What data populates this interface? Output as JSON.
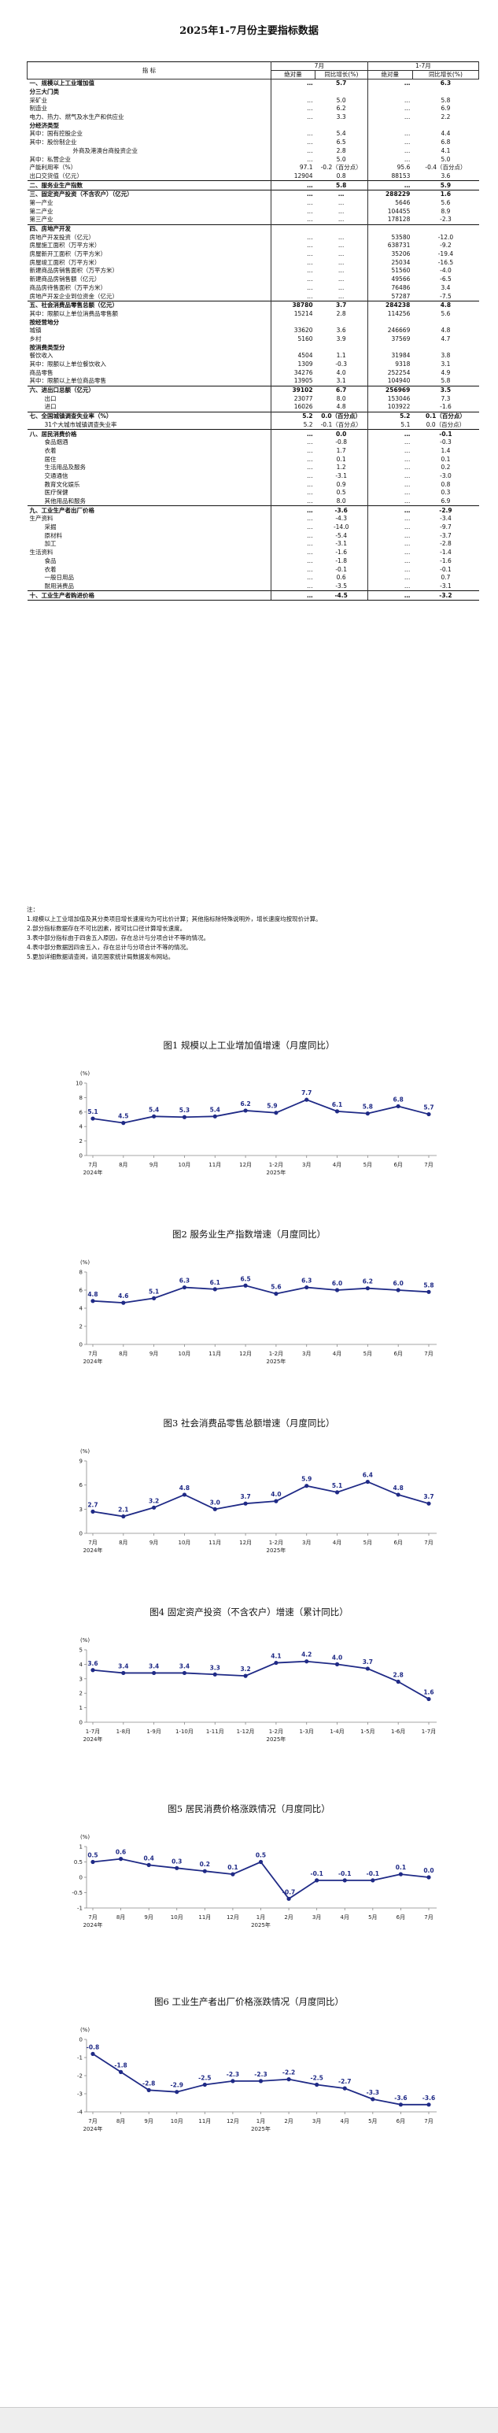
{
  "document": {
    "title": "2025年1-7月份主要指标数据",
    "header": {
      "indicator": "指  标",
      "period1": "7月",
      "period2": "1-7月",
      "abs": "绝对量",
      "growth": "同比增长(%)"
    },
    "rows": [
      {
        "label": "一、规模以上工业增加值",
        "a1": "…",
        "g1": "5.7",
        "a2": "…",
        "g2": "6.3",
        "level": 0,
        "bold": true,
        "sep": true
      },
      {
        "label": "分三大门类",
        "a1": "",
        "g1": "",
        "a2": "",
        "g2": "",
        "level": 0,
        "bold": true
      },
      {
        "label": "采矿业",
        "a1": "…",
        "g1": "5.0",
        "a2": "…",
        "g2": "5.8",
        "level": 0
      },
      {
        "label": "制造业",
        "a1": "…",
        "g1": "6.2",
        "a2": "…",
        "g2": "6.9",
        "level": 0
      },
      {
        "label": "电力、热力、燃气及水生产和供应业",
        "a1": "…",
        "g1": "3.3",
        "a2": "…",
        "g2": "2.2",
        "level": 0
      },
      {
        "label": "分经济类型",
        "a1": "",
        "g1": "",
        "a2": "",
        "g2": "",
        "level": 0,
        "bold": true
      },
      {
        "label": "其中：国有控股企业",
        "a1": "…",
        "g1": "5.4",
        "a2": "…",
        "g2": "4.4",
        "level": 0
      },
      {
        "label": "其中：股份制企业",
        "a1": "…",
        "g1": "6.5",
        "a2": "…",
        "g2": "6.8",
        "level": 0
      },
      {
        "label": "外商及港澳台商投资企业",
        "a1": "…",
        "g1": "2.8",
        "a2": "…",
        "g2": "4.1",
        "level": 2
      },
      {
        "label": "其中：私营企业",
        "a1": "…",
        "g1": "5.0",
        "a2": "…",
        "g2": "5.0",
        "level": 0
      },
      {
        "label": "产能利用率（%）",
        "a1": "97.1",
        "g1": "-0.2（百分点）",
        "a2": "95.6",
        "g2": "-0.4（百分点）",
        "level": 0
      },
      {
        "label": "出口交货值（亿元）",
        "a1": "12904",
        "g1": "0.8",
        "a2": "88153",
        "g2": "3.6",
        "level": 0
      },
      {
        "label": "二、服务业生产指数",
        "a1": "…",
        "g1": "5.8",
        "a2": "…",
        "g2": "5.9",
        "level": 0,
        "bold": true,
        "sep": true
      },
      {
        "label": "三、固定资产投资（不含农户）（亿元）",
        "a1": "…",
        "g1": "…",
        "a2": "288229",
        "g2": "1.6",
        "level": 0,
        "bold": true,
        "sep": true
      },
      {
        "label": "第一产业",
        "a1": "…",
        "g1": "…",
        "a2": "5646",
        "g2": "5.6",
        "level": 0
      },
      {
        "label": "第二产业",
        "a1": "…",
        "g1": "…",
        "a2": "104455",
        "g2": "8.9",
        "level": 0
      },
      {
        "label": "第三产业",
        "a1": "…",
        "g1": "…",
        "a2": "178128",
        "g2": "-2.3",
        "level": 0
      },
      {
        "label": "四、房地产开发",
        "a1": "",
        "g1": "",
        "a2": "",
        "g2": "",
        "level": 0,
        "bold": true,
        "sep": true
      },
      {
        "label": "房地产开发投资（亿元）",
        "a1": "…",
        "g1": "…",
        "a2": "53580",
        "g2": "-12.0",
        "level": 0
      },
      {
        "label": "房屋施工面积（万平方米）",
        "a1": "…",
        "g1": "…",
        "a2": "638731",
        "g2": "-9.2",
        "level": 0
      },
      {
        "label": "房屋新开工面积（万平方米）",
        "a1": "…",
        "g1": "…",
        "a2": "35206",
        "g2": "-19.4",
        "level": 0
      },
      {
        "label": "房屋竣工面积（万平方米）",
        "a1": "…",
        "g1": "…",
        "a2": "25034",
        "g2": "-16.5",
        "level": 0
      },
      {
        "label": "新建商品房销售面积（万平方米）",
        "a1": "…",
        "g1": "…",
        "a2": "51560",
        "g2": "-4.0",
        "level": 0
      },
      {
        "label": "新建商品房销售额（亿元）",
        "a1": "…",
        "g1": "…",
        "a2": "49566",
        "g2": "-6.5",
        "level": 0
      },
      {
        "label": "商品房待售面积（万平方米）",
        "a1": "…",
        "g1": "…",
        "a2": "76486",
        "g2": "3.4",
        "level": 0
      },
      {
        "label": "房地产开发企业到位资金（亿元）",
        "a1": "…",
        "g1": "…",
        "a2": "57287",
        "g2": "-7.5",
        "level": 0
      },
      {
        "label": "五、社会消费品零售总额（亿元）",
        "a1": "38780",
        "g1": "3.7",
        "a2": "284238",
        "g2": "4.8",
        "level": 0,
        "bold": true,
        "sep": true
      },
      {
        "label": "其中：限额以上单位消费品零售额",
        "a1": "15214",
        "g1": "2.8",
        "a2": "114256",
        "g2": "5.6",
        "level": 0
      },
      {
        "label": "按经营地分",
        "a1": "",
        "g1": "",
        "a2": "",
        "g2": "",
        "level": 0,
        "bold": true
      },
      {
        "label": "城镇",
        "a1": "33620",
        "g1": "3.6",
        "a2": "246669",
        "g2": "4.8",
        "level": 0
      },
      {
        "label": "乡村",
        "a1": "5160",
        "g1": "3.9",
        "a2": "37569",
        "g2": "4.7",
        "level": 0
      },
      {
        "label": "按消费类型分",
        "a1": "",
        "g1": "",
        "a2": "",
        "g2": "",
        "level": 0,
        "bold": true
      },
      {
        "label": "餐饮收入",
        "a1": "4504",
        "g1": "1.1",
        "a2": "31984",
        "g2": "3.8",
        "level": 0
      },
      {
        "label": "其中：限额以上单位餐饮收入",
        "a1": "1309",
        "g1": "-0.3",
        "a2": "9318",
        "g2": "3.1",
        "level": 0
      },
      {
        "label": "商品零售",
        "a1": "34276",
        "g1": "4.0",
        "a2": "252254",
        "g2": "4.9",
        "level": 0
      },
      {
        "label": "其中：限额以上单位商品零售",
        "a1": "13905",
        "g1": "3.1",
        "a2": "104940",
        "g2": "5.8",
        "level": 0
      },
      {
        "label": "六、进出口总额（亿元）",
        "a1": "39102",
        "g1": "6.7",
        "a2": "256969",
        "g2": "3.5",
        "level": 0,
        "bold": true,
        "sep": true
      },
      {
        "label": "出口",
        "a1": "23077",
        "g1": "8.0",
        "a2": "153046",
        "g2": "7.3",
        "level": 1
      },
      {
        "label": "进口",
        "a1": "16026",
        "g1": "4.8",
        "a2": "103922",
        "g2": "-1.6",
        "level": 1
      },
      {
        "label": "七、全国城镇调查失业率（%）",
        "a1": "5.2",
        "g1": "0.0（百分点）",
        "a2": "5.2",
        "g2": "0.1（百分点）",
        "level": 0,
        "bold": true,
        "sep": true
      },
      {
        "label": "31个大城市城镇调查失业率",
        "a1": "5.2",
        "g1": "-0.1（百分点）",
        "a2": "5.1",
        "g2": "0.0（百分点）",
        "level": 1
      },
      {
        "label": "八、居民消费价格",
        "a1": "…",
        "g1": "0.0",
        "a2": "…",
        "g2": "-0.1",
        "level": 0,
        "bold": true,
        "sep": true
      },
      {
        "label": "食品烟酒",
        "a1": "…",
        "g1": "-0.8",
        "a2": "…",
        "g2": "-0.3",
        "level": 1
      },
      {
        "label": "衣着",
        "a1": "…",
        "g1": "1.7",
        "a2": "…",
        "g2": "1.4",
        "level": 1
      },
      {
        "label": "居住",
        "a1": "…",
        "g1": "0.1",
        "a2": "…",
        "g2": "0.1",
        "level": 1
      },
      {
        "label": "生活用品及服务",
        "a1": "…",
        "g1": "1.2",
        "a2": "…",
        "g2": "0.2",
        "level": 1
      },
      {
        "label": "交通通信",
        "a1": "…",
        "g1": "-3.1",
        "a2": "…",
        "g2": "-3.0",
        "level": 1
      },
      {
        "label": "教育文化娱乐",
        "a1": "…",
        "g1": "0.9",
        "a2": "…",
        "g2": "0.8",
        "level": 1
      },
      {
        "label": "医疗保健",
        "a1": "…",
        "g1": "0.5",
        "a2": "…",
        "g2": "0.3",
        "level": 1
      },
      {
        "label": "其他用品和服务",
        "a1": "…",
        "g1": "8.0",
        "a2": "…",
        "g2": "6.9",
        "level": 1
      },
      {
        "label": "九、工业生产者出厂价格",
        "a1": "…",
        "g1": "-3.6",
        "a2": "…",
        "g2": "-2.9",
        "level": 0,
        "bold": true,
        "sep": true
      },
      {
        "label": "生产资料",
        "a1": "…",
        "g1": "-4.3",
        "a2": "…",
        "g2": "-3.4",
        "level": 0
      },
      {
        "label": "采掘",
        "a1": "…",
        "g1": "-14.0",
        "a2": "…",
        "g2": "-9.7",
        "level": 1
      },
      {
        "label": "原材料",
        "a1": "…",
        "g1": "-5.4",
        "a2": "…",
        "g2": "-3.7",
        "level": 1
      },
      {
        "label": "加工",
        "a1": "…",
        "g1": "-3.1",
        "a2": "…",
        "g2": "-2.8",
        "level": 1
      },
      {
        "label": "生活资料",
        "a1": "…",
        "g1": "-1.6",
        "a2": "…",
        "g2": "-1.4",
        "level": 0
      },
      {
        "label": "食品",
        "a1": "…",
        "g1": "-1.8",
        "a2": "…",
        "g2": "-1.6",
        "level": 1
      },
      {
        "label": "衣着",
        "a1": "…",
        "g1": "-0.1",
        "a2": "…",
        "g2": "-0.1",
        "level": 1
      },
      {
        "label": "一般日用品",
        "a1": "…",
        "g1": "0.6",
        "a2": "…",
        "g2": "0.7",
        "level": 1
      },
      {
        "label": "耐用消费品",
        "a1": "…",
        "g1": "-3.5",
        "a2": "…",
        "g2": "-3.1",
        "level": 1
      },
      {
        "label": "十、工业生产者购进价格",
        "a1": "…",
        "g1": "-4.5",
        "a2": "…",
        "g2": "-3.2",
        "level": 0,
        "bold": true,
        "sep": true
      }
    ],
    "notes": [
      "注：",
      "1.规模以上工业增加值及其分类项目增长速度均为可比价计算；其他指标除特殊说明外，增长速度均按现价计算。",
      "2.部分指标数据存在不可比因素，按可比口径计算增长速度。",
      "3.表中部分指标由于四舍五入原因，存在总计与分项合计不等的情况。",
      "4.表中部分数据因四舍五入，存在总计与分项合计不等的情况。",
      "5.更加详细数据请查阅，请见国家统计局数据发布网站。"
    ]
  },
  "chart_data": [
    {
      "type": "line",
      "title": "图1  规模以上工业增加值增速（月度同比）",
      "unit": "(%)",
      "categories": [
        "7月",
        "8月",
        "9月",
        "10月",
        "11月",
        "12月",
        "1-2月",
        "3月",
        "4月",
        "5月",
        "6月",
        "7月"
      ],
      "year_labels": [
        {
          "index": 0,
          "text": "2024年"
        },
        {
          "index": 6,
          "text": "2025年"
        }
      ],
      "values": [
        5.1,
        4.5,
        5.4,
        5.3,
        5.4,
        6.2,
        5.9,
        7.7,
        6.1,
        5.8,
        6.8,
        5.7
      ],
      "y_ticks": [
        0,
        2,
        4,
        6,
        8,
        10
      ],
      "ylim": [
        0,
        10
      ],
      "label_dx": [
        0,
        0,
        0,
        0,
        0,
        0,
        -5,
        0,
        0,
        0,
        0,
        0
      ]
    },
    {
      "type": "line",
      "title": "图2  服务业生产指数增速（月度同比）",
      "unit": "(%)",
      "categories": [
        "7月",
        "8月",
        "9月",
        "10月",
        "11月",
        "12月",
        "1-2月",
        "3月",
        "4月",
        "5月",
        "6月",
        "7月"
      ],
      "year_labels": [
        {
          "index": 0,
          "text": "2024年"
        },
        {
          "index": 6,
          "text": "2025年"
        }
      ],
      "values": [
        4.8,
        4.6,
        5.1,
        6.3,
        6.1,
        6.5,
        5.6,
        6.3,
        6.0,
        6.2,
        6.0,
        5.8
      ],
      "y_ticks": [
        0,
        2,
        4,
        6,
        8
      ],
      "ylim": [
        0,
        8
      ],
      "label_dx": [
        0,
        0,
        0,
        0,
        0,
        0,
        0,
        0,
        0,
        0,
        0,
        0
      ]
    },
    {
      "type": "line",
      "title": "图3  社会消费品零售总额增速（月度同比）",
      "unit": "(%)",
      "categories": [
        "7月",
        "8月",
        "9月",
        "10月",
        "11月",
        "12月",
        "1-2月",
        "3月",
        "4月",
        "5月",
        "6月",
        "7月"
      ],
      "year_labels": [
        {
          "index": 0,
          "text": "2024年"
        },
        {
          "index": 6,
          "text": "2025年"
        }
      ],
      "values": [
        2.7,
        2.1,
        3.2,
        4.8,
        3.0,
        3.7,
        4.0,
        5.9,
        5.1,
        6.4,
        4.8,
        3.7
      ],
      "y_ticks": [
        0,
        3,
        6,
        9
      ],
      "ylim": [
        0,
        9
      ],
      "label_dx": [
        0,
        0,
        0,
        0,
        0,
        0,
        0,
        0,
        0,
        0,
        0,
        0
      ]
    },
    {
      "type": "line",
      "title": "图4  固定资产投资（不含农户）增速（累计同比）",
      "unit": "(%)",
      "categories": [
        "1-7月",
        "1-8月",
        "1-9月",
        "1-10月",
        "1-11月",
        "1-12月",
        "1-2月",
        "1-3月",
        "1-4月",
        "1-5月",
        "1-6月",
        "1-7月"
      ],
      "year_labels": [
        {
          "index": 0,
          "text": "2024年"
        },
        {
          "index": 6,
          "text": "2025年"
        }
      ],
      "values": [
        3.6,
        3.4,
        3.4,
        3.4,
        3.3,
        3.2,
        4.1,
        4.2,
        4.0,
        3.7,
        2.8,
        1.6
      ],
      "y_ticks": [
        0,
        1,
        2,
        3,
        4,
        5
      ],
      "ylim": [
        0,
        5
      ],
      "label_dx": [
        0,
        0,
        0,
        0,
        0,
        0,
        0,
        0,
        0,
        0,
        0,
        0
      ]
    },
    {
      "type": "line",
      "title": "图5  居民消费价格涨跌情况（月度同比）",
      "unit": "(%)",
      "categories": [
        "7月",
        "8月",
        "9月",
        "10月",
        "11月",
        "12月",
        "1月",
        "2月",
        "3月",
        "4月",
        "5月",
        "6月",
        "7月"
      ],
      "year_labels": [
        {
          "index": 0,
          "text": "2024年"
        },
        {
          "index": 6,
          "text": "2025年"
        }
      ],
      "values": [
        0.5,
        0.6,
        0.4,
        0.3,
        0.2,
        0.1,
        0.5,
        -0.7,
        -0.1,
        -0.1,
        -0.1,
        0.1,
        0.0
      ],
      "y_ticks": [
        -1,
        -0.5,
        0,
        0.5,
        1
      ],
      "ylim": [
        -1,
        1
      ],
      "label_dx": [
        0,
        0,
        0,
        0,
        0,
        0,
        0,
        0,
        0,
        0,
        0,
        0,
        0
      ]
    },
    {
      "type": "line",
      "title": "图6  工业生产者出厂价格涨跌情况（月度同比）",
      "unit": "(%)",
      "categories": [
        "7月",
        "8月",
        "9月",
        "10月",
        "11月",
        "12月",
        "1月",
        "2月",
        "3月",
        "4月",
        "5月",
        "6月",
        "7月"
      ],
      "year_labels": [
        {
          "index": 0,
          "text": "2024年"
        },
        {
          "index": 6,
          "text": "2025年"
        }
      ],
      "values": [
        -0.8,
        -1.8,
        -2.8,
        -2.9,
        -2.5,
        -2.3,
        -2.3,
        -2.2,
        -2.5,
        -2.7,
        -3.3,
        -3.6,
        -3.6
      ],
      "y_ticks": [
        -4,
        -3,
        -2,
        -1,
        0
      ],
      "ylim": [
        -4,
        0
      ],
      "label_dx": [
        0,
        0,
        0,
        0,
        0,
        0,
        0,
        0,
        0,
        0,
        0,
        0,
        0
      ]
    }
  ],
  "colors": {
    "line": "#1f2a86",
    "axis": "#888888",
    "text": "#222222"
  }
}
